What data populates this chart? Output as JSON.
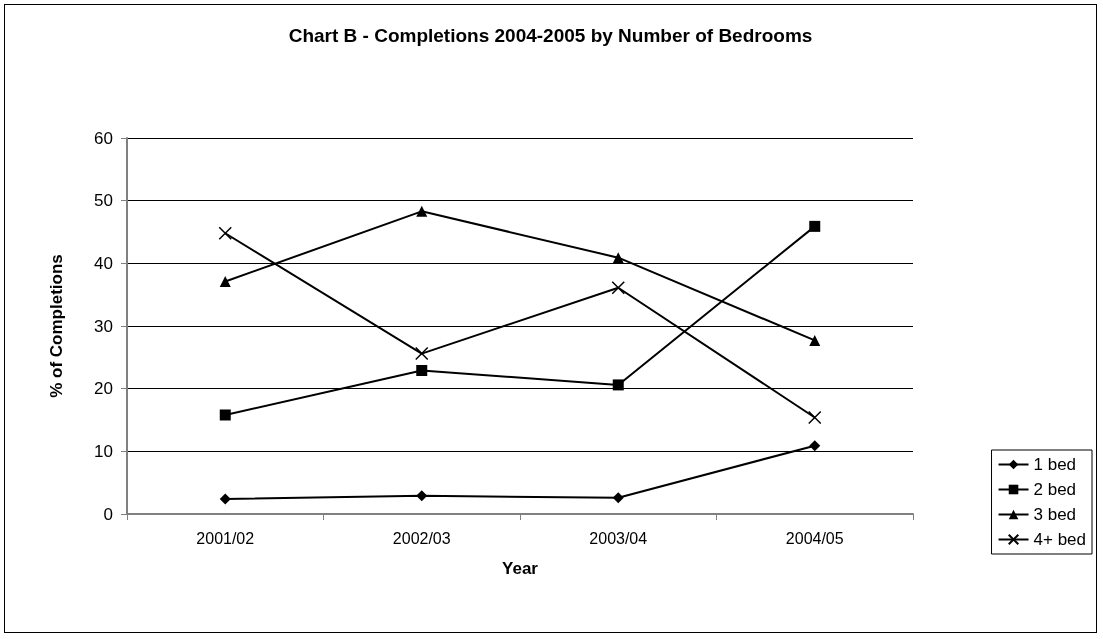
{
  "chart_data": {
    "type": "line",
    "title": "Chart B - Completions 2004-2005 by Number of Bedrooms",
    "xlabel": "Year",
    "ylabel": "% of Completions",
    "categories": [
      "2001/02",
      "2002/03",
      "2003/04",
      "2004/05"
    ],
    "series": [
      {
        "name": "1 bed",
        "color": "#000000",
        "marker": "diamond",
        "values": [
          2.4,
          2.9,
          2.6,
          10.9
        ]
      },
      {
        "name": "2 bed",
        "color": "#000000",
        "marker": "square",
        "values": [
          15.8,
          22.9,
          20.6,
          45.9
        ]
      },
      {
        "name": "3 bed",
        "color": "#000000",
        "marker": "triangle",
        "values": [
          37.1,
          48.3,
          40.9,
          27.7
        ]
      },
      {
        "name": "4+ bed",
        "color": "#000000",
        "marker": "cross",
        "values": [
          44.8,
          25.6,
          36.1,
          15.4
        ]
      }
    ],
    "ylim": [
      0,
      60
    ],
    "yticks": [
      0,
      10,
      20,
      30,
      40,
      50,
      60
    ],
    "grid": "y",
    "legend": "right",
    "line_style": "solid"
  }
}
